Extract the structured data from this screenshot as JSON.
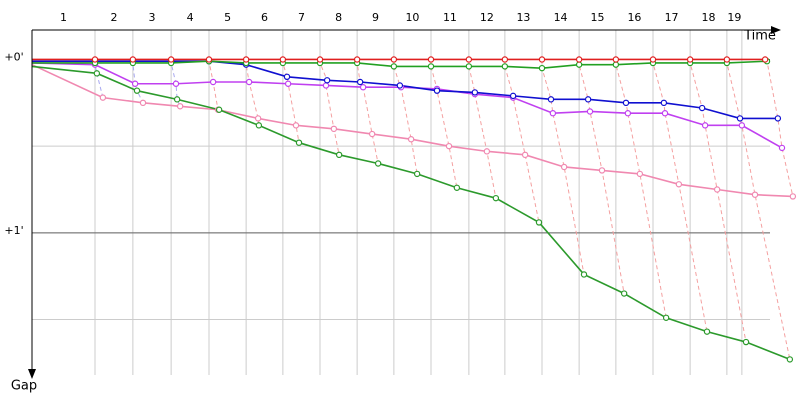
{
  "chart_data": {
    "type": "line",
    "x_label": "Time",
    "y_label": "Gap",
    "laps": [
      "1",
      "2",
      "3",
      "4",
      "5",
      "6",
      "7",
      "8",
      "9",
      "10",
      "11",
      "12",
      "13",
      "14",
      "15",
      "16",
      "17",
      "18",
      "19"
    ],
    "xlim": [
      0,
      20.48
    ],
    "xticks": [
      1.68,
      2.69,
      3.71,
      4.72,
      5.71,
      6.69,
      7.68,
      8.67,
      9.65,
      10.64,
      11.65,
      12.61,
      13.6,
      14.59,
      15.57,
      16.56,
      17.55,
      18.53,
      18.93
    ],
    "ylim": [
      -0.17,
      1.82
    ],
    "yticks": [
      {
        "value": 0,
        "label": "+0'"
      },
      {
        "value": 1,
        "label": "+1'"
      }
    ],
    "ygrid": [
      0,
      0.5,
      1,
      1.5
    ],
    "grid": true,
    "series": [
      {
        "color": "#f088b0",
        "x": [
          0,
          1.89,
          2.96,
          3.95,
          4.96,
          6.03,
          7.04,
          8.05,
          9.07,
          10.11,
          11.12,
          12.13,
          13.15,
          14.19,
          15.2,
          16.21,
          17.25,
          18.27,
          19.28,
          20.29
        ],
        "values": [
          0.03,
          0.22,
          0.25,
          0.27,
          0.29,
          0.34,
          0.38,
          0.4,
          0.43,
          0.46,
          0.5,
          0.53,
          0.55,
          0.62,
          0.64,
          0.66,
          0.72,
          0.75,
          0.78,
          0.79
        ]
      },
      {
        "color": "#2c9a2c",
        "x": [
          0,
          1.73,
          2.8,
          3.87,
          4.99,
          6.05,
          7.12,
          8.19,
          9.23,
          10.27,
          11.33,
          12.37,
          13.52,
          14.72,
          15.79,
          16.91,
          18.0,
          19.04,
          20.21
        ],
        "values": [
          0.04,
          0.08,
          0.18,
          0.23,
          0.29,
          0.38,
          0.48,
          0.55,
          0.6,
          0.66,
          0.74,
          0.8,
          0.94,
          1.24,
          1.35,
          1.49,
          1.57,
          1.63,
          1.73
        ]
      },
      {
        "color": "#c040f0",
        "x": [
          0,
          1.68,
          2.75,
          3.84,
          4.83,
          5.79,
          6.83,
          7.84,
          8.83,
          9.84,
          10.8,
          11.81,
          12.83,
          13.89,
          14.88,
          15.89,
          16.88,
          17.95,
          18.93,
          20.0
        ],
        "values": [
          0.02,
          0.03,
          0.14,
          0.14,
          0.13,
          0.13,
          0.14,
          0.15,
          0.16,
          0.16,
          0.17,
          0.2,
          0.22,
          0.31,
          0.3,
          0.31,
          0.31,
          0.38,
          0.38,
          0.51
        ]
      },
      {
        "color": "#1010d0",
        "x": [
          0,
          1.68,
          2.69,
          3.71,
          4.72,
          5.71,
          6.8,
          7.87,
          8.75,
          9.81,
          10.8,
          11.81,
          12.83,
          13.84,
          14.83,
          15.84,
          16.85,
          17.87,
          18.88,
          19.89
        ],
        "values": [
          0.01,
          0.01,
          0.01,
          0.01,
          0.01,
          0.03,
          0.1,
          0.12,
          0.13,
          0.15,
          0.18,
          0.19,
          0.21,
          0.23,
          0.23,
          0.25,
          0.25,
          0.28,
          0.34,
          0.34
        ]
      },
      {
        "color": "#22a022",
        "x": [
          0,
          1.68,
          2.69,
          3.71,
          4.72,
          5.71,
          6.69,
          7.68,
          8.67,
          9.65,
          10.64,
          11.65,
          12.61,
          13.6,
          14.59,
          15.57,
          16.56,
          17.55,
          18.53,
          19.6
        ],
        "values": [
          0.02,
          0.02,
          0.02,
          0.02,
          0.01,
          0.02,
          0.02,
          0.02,
          0.02,
          0.04,
          0.04,
          0.04,
          0.04,
          0.05,
          0.03,
          0.03,
          0.02,
          0.02,
          0.02,
          0.01
        ]
      },
      {
        "color": "#e02020",
        "x": [
          0,
          1.68,
          2.69,
          3.71,
          4.72,
          5.71,
          6.69,
          7.68,
          8.67,
          9.65,
          10.64,
          11.65,
          12.61,
          13.6,
          14.59,
          15.57,
          16.56,
          17.55,
          18.53,
          19.55
        ],
        "values": [
          0,
          0,
          0,
          0,
          0,
          0,
          0,
          0,
          0,
          0,
          0,
          0,
          0,
          0,
          0,
          0,
          0,
          0,
          0,
          0
        ]
      }
    ]
  }
}
